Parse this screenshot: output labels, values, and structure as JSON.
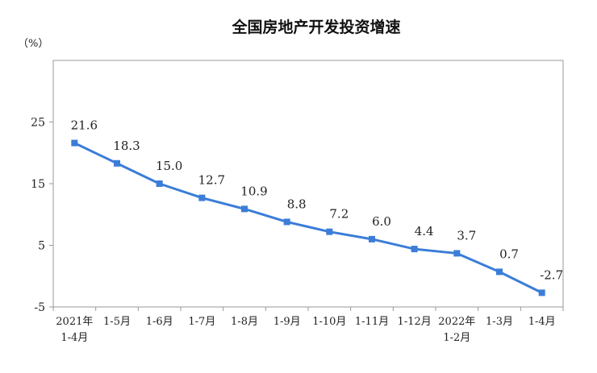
{
  "chart_data": {
    "type": "line",
    "title": "全国房地产开发投资增速",
    "ylabel": "（%）",
    "categories": [
      [
        "2021年",
        "1-4月"
      ],
      [
        "1-5月"
      ],
      [
        "1-6月"
      ],
      [
        "1-7月"
      ],
      [
        "1-8月"
      ],
      [
        "1-9月"
      ],
      [
        "1-10月"
      ],
      [
        "1-11月"
      ],
      [
        "1-12月"
      ],
      [
        "2022年",
        "1-2月"
      ],
      [
        "1-3月"
      ],
      [
        "1-4月"
      ]
    ],
    "values": [
      21.6,
      18.3,
      15.0,
      12.7,
      10.9,
      8.8,
      7.2,
      6.0,
      4.4,
      3.7,
      0.7,
      -2.7
    ],
    "data_labels": [
      "21.6",
      "18.3",
      "15.0",
      "12.7",
      "10.9",
      "8.8",
      "7.2",
      "6.0",
      "4.4",
      "3.7",
      "0.7",
      "-2.7"
    ],
    "ylim": [
      -5,
      35
    ],
    "yticks": [
      25,
      15,
      5,
      -5
    ],
    "grid": false,
    "legend": "none",
    "line_color": "#3b7dd8",
    "axis_color": "#999999"
  }
}
